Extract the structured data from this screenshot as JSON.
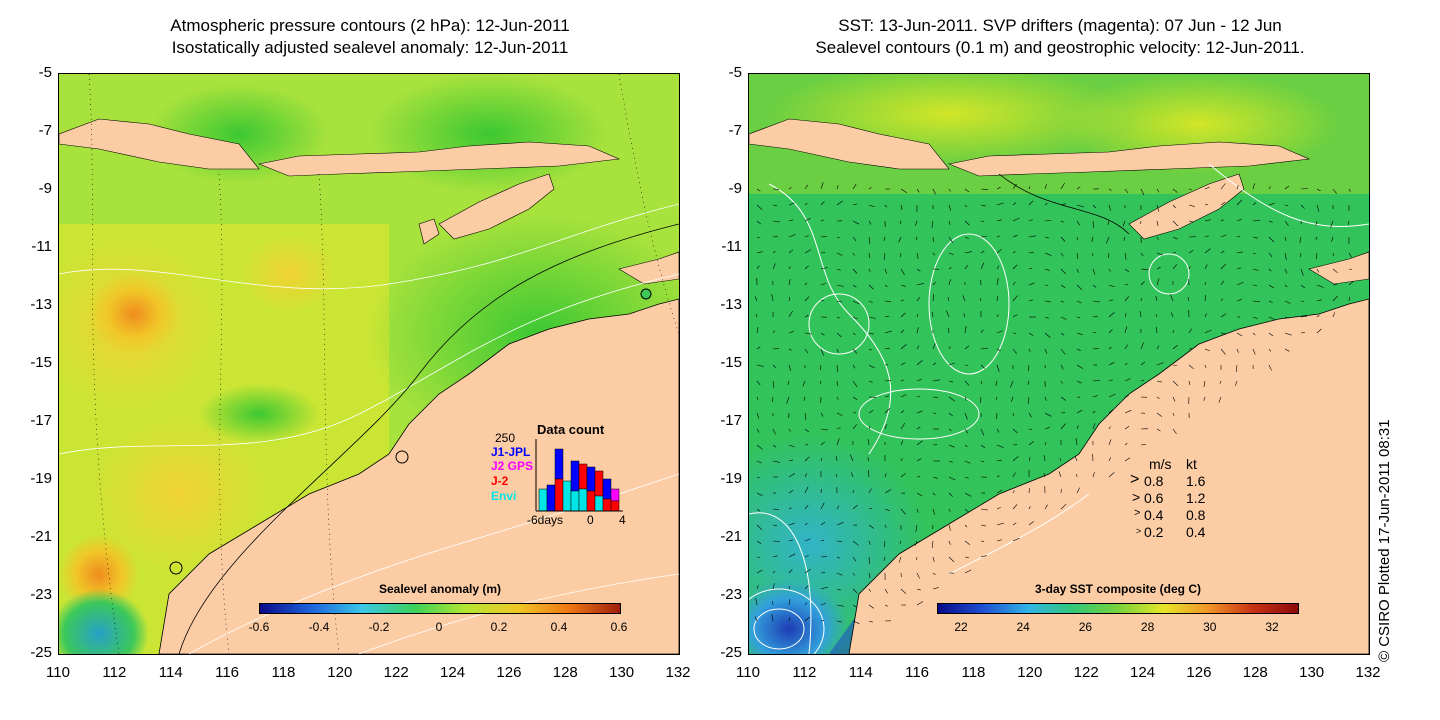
{
  "left_panel": {
    "title_line1": "Atmospheric pressure contours (2 hPa): 12-Jun-2011",
    "title_line2": "Isostatically adjusted sealevel anomaly: 12-Jun-2011",
    "colorbar_title": "Sealevel anomaly (m)",
    "colorbar_ticks": [
      "-0.6",
      "-0.4",
      "-0.2",
      "0",
      "0.2",
      "0.4",
      "0.6"
    ],
    "colorbar_colors": [
      "#0a0a8a",
      "#1e64dc",
      "#3cc8e6",
      "#3cd25a",
      "#b4e632",
      "#f0c828",
      "#f07814",
      "#a01e0a"
    ],
    "inset": {
      "title": "Data count",
      "y_max_label": "250",
      "x_labels": [
        "-6days",
        "0",
        "4"
      ],
      "legend": [
        {
          "label": "J1-JPL",
          "color": "#0000ff"
        },
        {
          "label": "J2 GPS",
          "color": "#ff00ff"
        },
        {
          "label": "J-2",
          "color": "#ff0000"
        },
        {
          "label": "Envi",
          "color": "#00e6e6"
        }
      ]
    }
  },
  "right_panel": {
    "title_line1": "SST: 13-Jun-2011. SVP drifters (magenta): 07 Jun - 12 Jun",
    "title_line2": "Sealevel contours (0.1 m) and geostrophic velocity: 12-Jun-2011.",
    "colorbar_title": "3-day SST composite (deg C)",
    "colorbar_ticks": [
      "22",
      "24",
      "26",
      "28",
      "30",
      "32"
    ],
    "colorbar_colors": [
      "#0a0a8a",
      "#1e50d2",
      "#32b4e6",
      "#32c878",
      "#78d23c",
      "#e6e628",
      "#f09628",
      "#c83214",
      "#8c0a0a"
    ],
    "velocity_legend": {
      "header_ms": "m/s",
      "header_kt": "kt",
      "rows": [
        {
          "ms": "0.8",
          "kt": "1.6"
        },
        {
          "ms": "0.6",
          "kt": "1.2"
        },
        {
          "ms": "0.4",
          "kt": "0.8"
        },
        {
          "ms": "0.2",
          "kt": "0.4"
        }
      ]
    },
    "credit": "© CSIRO Plotted 17-Jun-2011 08:31"
  },
  "axes": {
    "y_ticks": [
      "-5",
      "-7",
      "-9",
      "-11",
      "-13",
      "-15",
      "-17",
      "-19",
      "-21",
      "-23",
      "-25"
    ],
    "x_ticks": [
      "110",
      "112",
      "114",
      "116",
      "118",
      "120",
      "122",
      "124",
      "126",
      "128",
      "130",
      "132"
    ]
  },
  "colors": {
    "land": "#fccda5",
    "sea_left": "#9be23c",
    "sea_right": "#32c85a"
  }
}
